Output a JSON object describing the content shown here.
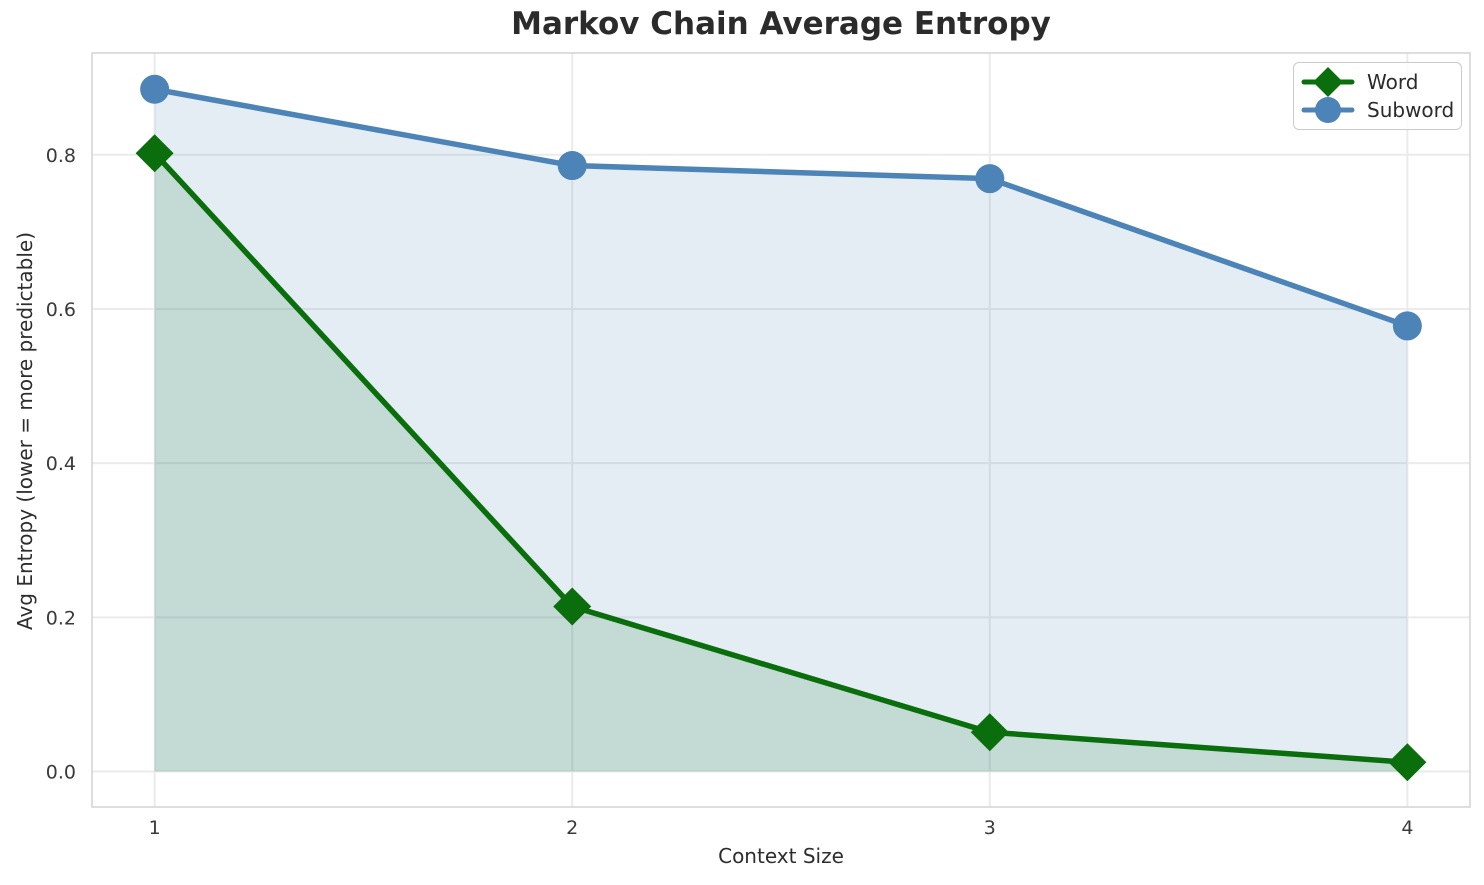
{
  "chart_data": {
    "type": "line",
    "title": "Markov Chain Average Entropy",
    "xlabel": "Context Size",
    "ylabel": "Avg Entropy (lower = more predictable)",
    "x": [
      1,
      2,
      3,
      4
    ],
    "series": [
      {
        "name": "Word",
        "marker": "diamond",
        "color": "#0a6e0d",
        "fill_opacity": 0.15,
        "values": [
          0.802,
          0.214,
          0.051,
          0.012
        ]
      },
      {
        "name": "Subword",
        "marker": "circle",
        "color": "#4c84b8",
        "fill_opacity": 0.15,
        "values": [
          0.885,
          0.786,
          0.769,
          0.578
        ]
      }
    ],
    "xlim": [
      0.85,
      4.15
    ],
    "ylim": [
      -0.046,
      0.932
    ],
    "xticks": [
      "1",
      "2",
      "3",
      "4"
    ],
    "yticks": [
      "0.0",
      "0.2",
      "0.4",
      "0.6",
      "0.8"
    ],
    "grid": true,
    "fill_to_zero": true,
    "legend_position": "upper right"
  },
  "colors": {
    "grid": "#ebebeb",
    "plot_border": "#d5d5d5",
    "tick_label": "#3a3a3a",
    "axis_label": "#2d2d2d",
    "title": "#2b2b2b",
    "background": "#ffffff"
  }
}
